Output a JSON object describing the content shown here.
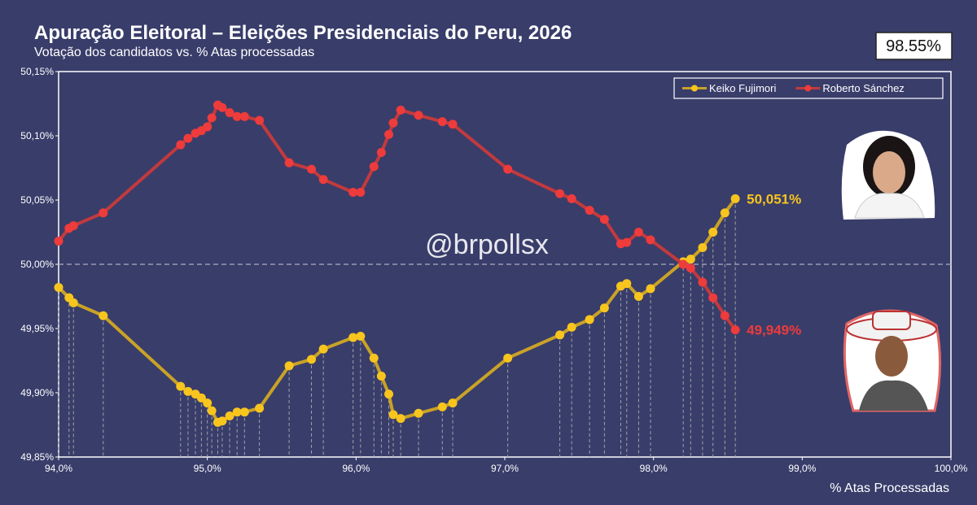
{
  "chart_data": {
    "type": "line",
    "title": "Apuração Eleitoral – Eleições Presidenciais do Peru, 2026",
    "subtitle": "Votação dos candidatos vs. % Atas processadas",
    "badge": "98.55%",
    "watermark": "@brpollsx",
    "x_label": "% Atas Processadas",
    "x": [
      94.0,
      94.07,
      94.1,
      94.3,
      94.82,
      94.87,
      94.92,
      94.96,
      95.0,
      95.03,
      95.07,
      95.1,
      95.15,
      95.2,
      95.25,
      95.35,
      95.55,
      95.7,
      95.78,
      95.98,
      96.03,
      96.12,
      96.17,
      96.22,
      96.25,
      96.3,
      96.42,
      96.58,
      96.65,
      97.02,
      97.37,
      97.45,
      97.57,
      97.67,
      97.78,
      97.82,
      97.9,
      97.98,
      98.2,
      98.25,
      98.33,
      98.4,
      98.48,
      98.55
    ],
    "series": [
      {
        "name": "Keiko Fujimori",
        "color": "#f7c51e",
        "line_color": "#c9a227",
        "values": [
          49.982,
          49.974,
          49.97,
          49.96,
          49.905,
          49.901,
          49.899,
          49.896,
          49.892,
          49.886,
          49.877,
          49.878,
          49.882,
          49.885,
          49.885,
          49.888,
          49.921,
          49.926,
          49.934,
          49.943,
          49.944,
          49.927,
          49.913,
          49.899,
          49.883,
          49.88,
          49.884,
          49.889,
          49.892,
          49.927,
          49.945,
          49.951,
          49.957,
          49.966,
          49.983,
          49.985,
          49.975,
          49.981,
          50.002,
          50.004,
          50.013,
          50.025,
          50.04,
          50.051
        ],
        "value_labels": [
          null,
          null,
          null,
          null,
          null,
          null,
          null,
          null,
          null,
          null,
          null,
          null,
          null,
          null,
          null,
          null,
          null,
          null,
          null,
          null,
          null,
          null,
          null,
          null,
          null,
          null,
          null,
          null,
          null,
          null,
          null,
          null,
          null,
          null,
          null,
          null,
          null,
          null,
          null,
          null,
          null,
          null,
          null,
          "50,051%"
        ]
      },
      {
        "name": "Roberto Sánchez",
        "color": "#ee3b3b",
        "line_color": "#c23a3d",
        "values": [
          50.018,
          50.028,
          50.03,
          50.04,
          50.093,
          50.098,
          50.102,
          50.104,
          50.107,
          50.114,
          50.124,
          50.122,
          50.118,
          50.115,
          50.115,
          50.112,
          50.079,
          50.074,
          50.066,
          50.056,
          50.056,
          50.076,
          50.087,
          50.101,
          50.11,
          50.12,
          50.116,
          50.111,
          50.109,
          50.074,
          50.055,
          50.051,
          50.042,
          50.035,
          50.016,
          50.017,
          50.025,
          50.019,
          50.0,
          49.997,
          49.986,
          49.974,
          49.96,
          49.949
        ],
        "value_labels": [
          null,
          null,
          null,
          null,
          null,
          null,
          null,
          null,
          null,
          null,
          null,
          null,
          null,
          null,
          null,
          null,
          null,
          null,
          null,
          null,
          null,
          null,
          null,
          null,
          null,
          null,
          null,
          null,
          null,
          null,
          null,
          null,
          null,
          null,
          null,
          null,
          null,
          null,
          null,
          null,
          null,
          null,
          null,
          "49,949%"
        ]
      }
    ],
    "reference_line": 50.0,
    "xlim": [
      94,
      100
    ],
    "xticks": [
      {
        "value": 94,
        "label": "94,0%"
      },
      {
        "value": 95,
        "label": "95,0%"
      },
      {
        "value": 96,
        "label": "96,0%"
      },
      {
        "value": 97,
        "label": "97,0%"
      },
      {
        "value": 98,
        "label": "98,0%"
      },
      {
        "value": 99,
        "label": "99,0%"
      },
      {
        "value": 100,
        "label": "100,0%"
      }
    ],
    "ylim": [
      49.85,
      50.15
    ],
    "yticks": [
      {
        "value": 49.85,
        "label": "49,85%"
      },
      {
        "value": 49.9,
        "label": "49,90%"
      },
      {
        "value": 49.95,
        "label": "49,95%"
      },
      {
        "value": 50.0,
        "label": "50,00%"
      },
      {
        "value": 50.05,
        "label": "50,05%"
      },
      {
        "value": 50.1,
        "label": "50,10%"
      },
      {
        "value": 50.15,
        "label": "50,15%"
      }
    ],
    "drop_lines": true,
    "legend_position": "upper right"
  }
}
